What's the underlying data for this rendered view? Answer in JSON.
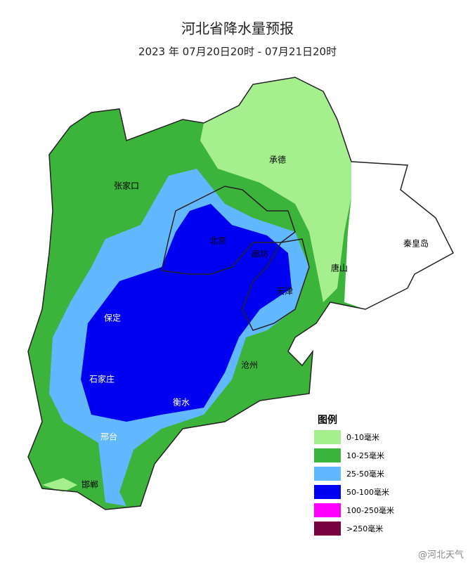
{
  "header": {
    "title": "河北省降水量预报",
    "subtitle": "2023 年 07月20日20时 - 07月21日20时"
  },
  "legend": {
    "title": "图例",
    "items": [
      {
        "label": "0-10毫米",
        "color": "#a6ef8e"
      },
      {
        "label": "10-25毫米",
        "color": "#3cb43c"
      },
      {
        "label": "25-50毫米",
        "color": "#62b8ff"
      },
      {
        "label": "50-100毫米",
        "color": "#0000f0"
      },
      {
        "label": "100-250毫米",
        "color": "#ff00ff"
      },
      {
        "label": ">250毫米",
        "color": "#780040"
      }
    ]
  },
  "cities": [
    {
      "label": "张家口"
    },
    {
      "label": "承德"
    },
    {
      "label": "北京"
    },
    {
      "label": "天津"
    },
    {
      "label": "唐山"
    },
    {
      "label": "秦皇岛"
    },
    {
      "label": "廊坊"
    },
    {
      "label": "保定"
    },
    {
      "label": "沧州"
    },
    {
      "label": "衡水"
    },
    {
      "label": "石家庄"
    },
    {
      "label": "邢台"
    },
    {
      "label": "邯郸"
    }
  ],
  "watermark": "@河北天气"
}
